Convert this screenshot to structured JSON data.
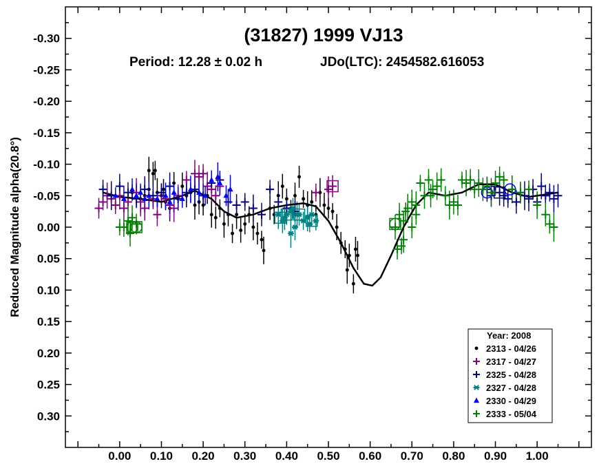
{
  "chart_data": {
    "type": "scatter",
    "title": "(31827) 1999 VJ13",
    "subtitle_period": "Period: 12.28 ± 0.02 h",
    "subtitle_epoch": "JDo(LTC): 2454582.616053",
    "xlabel": "",
    "ylabel": "Reduced Magnitude alpha(20.8°)",
    "xlim": [
      -0.13,
      1.13
    ],
    "ylim": [
      -0.35,
      0.35
    ],
    "y_inverted": true,
    "x_ticks": [
      "0.00",
      "0.10",
      "0.20",
      "0.30",
      "0.40",
      "0.50",
      "0.60",
      "0.70",
      "0.80",
      "0.90",
      "1.00"
    ],
    "y_ticks": [
      "-0.30",
      "-0.25",
      "-0.20",
      "-0.15",
      "-0.10",
      "-0.05",
      "0.00",
      "0.05",
      "0.10",
      "0.15",
      "0.20",
      "0.25",
      "0.30"
    ],
    "legend": {
      "title": "Year: 2008",
      "placement": "bottom-right"
    },
    "fit_curve": [
      [
        -0.04,
        -0.055
      ],
      [
        0.0,
        -0.048
      ],
      [
        0.05,
        -0.045
      ],
      [
        0.1,
        -0.04
      ],
      [
        0.15,
        -0.05
      ],
      [
        0.18,
        -0.058
      ],
      [
        0.22,
        -0.045
      ],
      [
        0.25,
        -0.025
      ],
      [
        0.28,
        -0.015
      ],
      [
        0.32,
        -0.02
      ],
      [
        0.36,
        -0.03
      ],
      [
        0.4,
        -0.035
      ],
      [
        0.44,
        -0.038
      ],
      [
        0.47,
        -0.033
      ],
      [
        0.5,
        -0.01
      ],
      [
        0.53,
        0.025
      ],
      [
        0.56,
        0.065
      ],
      [
        0.585,
        0.09
      ],
      [
        0.605,
        0.093
      ],
      [
        0.625,
        0.08
      ],
      [
        0.65,
        0.045
      ],
      [
        0.68,
        0.0
      ],
      [
        0.71,
        -0.035
      ],
      [
        0.74,
        -0.055
      ],
      [
        0.78,
        -0.05
      ],
      [
        0.82,
        -0.055
      ],
      [
        0.86,
        -0.068
      ],
      [
        0.9,
        -0.068
      ],
      [
        0.94,
        -0.055
      ],
      [
        0.98,
        -0.048
      ],
      [
        1.02,
        -0.052
      ],
      [
        1.05,
        -0.055
      ]
    ],
    "series": [
      {
        "name": "2313 - 04/26",
        "marker": "circle",
        "color": "#000000",
        "points": [
          [
            0.03,
            -0.055
          ],
          [
            0.05,
            -0.045
          ],
          [
            0.06,
            -0.05
          ],
          [
            0.07,
            -0.06
          ],
          [
            0.07,
            -0.09
          ],
          [
            0.08,
            -0.085
          ],
          [
            0.085,
            -0.09
          ],
          [
            0.09,
            -0.055
          ],
          [
            0.1,
            -0.05
          ],
          [
            0.105,
            -0.06
          ],
          [
            0.11,
            -0.04
          ],
          [
            0.12,
            -0.03
          ],
          [
            0.13,
            -0.07
          ],
          [
            0.14,
            -0.045
          ],
          [
            0.15,
            -0.065
          ],
          [
            0.16,
            -0.05
          ],
          [
            0.17,
            -0.055
          ],
          [
            0.18,
            -0.035
          ],
          [
            0.19,
            -0.04
          ],
          [
            0.2,
            -0.035
          ],
          [
            0.21,
            -0.05
          ],
          [
            0.22,
            -0.02
          ],
          [
            0.23,
            -0.015
          ],
          [
            0.24,
            -0.03
          ],
          [
            0.25,
            -0.005
          ],
          [
            0.26,
            -0.02
          ],
          [
            0.27,
            0.01
          ],
          [
            0.28,
            -0.02
          ],
          [
            0.29,
            0.005
          ],
          [
            0.3,
            -0.005
          ],
          [
            0.31,
            -0.02
          ],
          [
            0.32,
            0.0
          ],
          [
            0.33,
            0.01
          ],
          [
            0.34,
            0.02
          ],
          [
            0.345,
            0.037
          ],
          [
            0.36,
            -0.03
          ],
          [
            0.37,
            -0.02
          ],
          [
            0.38,
            -0.05
          ],
          [
            0.39,
            -0.065
          ],
          [
            0.4,
            -0.045
          ],
          [
            0.41,
            -0.03
          ],
          [
            0.42,
            -0.05
          ],
          [
            0.43,
            -0.08
          ],
          [
            0.44,
            -0.045
          ],
          [
            0.45,
            -0.035
          ],
          [
            0.46,
            -0.04
          ],
          [
            0.47,
            -0.02
          ],
          [
            0.48,
            -0.055
          ],
          [
            0.49,
            -0.035
          ],
          [
            0.5,
            -0.03
          ],
          [
            0.51,
            -0.025
          ],
          [
            0.52,
            0.0
          ],
          [
            0.53,
            0.025
          ],
          [
            0.54,
            0.035
          ],
          [
            0.545,
            0.068
          ],
          [
            0.55,
            0.045
          ],
          [
            0.56,
            0.09
          ],
          [
            0.57,
            0.045
          ],
          [
            0.565,
            0.035
          ]
        ]
      },
      {
        "name": "2317 - 04/27",
        "marker": "plus",
        "color": "#800080",
        "points": [
          [
            -0.05,
            -0.03
          ],
          [
            -0.04,
            -0.04
          ],
          [
            -0.03,
            -0.05
          ],
          [
            -0.02,
            -0.045
          ],
          [
            -0.01,
            -0.035
          ],
          [
            0.0,
            -0.05
          ],
          [
            0.01,
            -0.03
          ],
          [
            0.02,
            -0.04
          ],
          [
            0.04,
            -0.055
          ],
          [
            0.06,
            -0.03
          ],
          [
            0.08,
            -0.045
          ],
          [
            0.1,
            -0.05
          ],
          [
            0.12,
            -0.035
          ],
          [
            0.14,
            -0.05
          ],
          [
            0.16,
            -0.075
          ],
          [
            0.18,
            -0.085
          ],
          [
            0.19,
            -0.08
          ],
          [
            0.2,
            -0.085
          ],
          [
            0.21,
            -0.065
          ],
          [
            0.22,
            -0.06
          ],
          [
            0.23,
            -0.05
          ],
          [
            0.24,
            -0.065
          ],
          [
            0.5,
            -0.06
          ],
          [
            0.51,
            -0.065
          ],
          [
            0.47,
            -0.055
          ],
          [
            0.13,
            -0.03
          ],
          [
            0.09,
            -0.02
          ],
          [
            0.11,
            -0.045
          ],
          [
            0.05,
            -0.04
          ],
          [
            0.07,
            -0.05
          ]
        ],
        "open_markers": [
          [
            0.51,
            -0.065
          ]
        ]
      },
      {
        "name": "2325 - 04/28",
        "marker": "plus",
        "color": "#000080",
        "points": [
          [
            0.88,
            -0.06
          ],
          [
            0.89,
            -0.05
          ],
          [
            0.9,
            -0.065
          ],
          [
            0.91,
            -0.055
          ],
          [
            0.92,
            -0.05
          ],
          [
            0.93,
            -0.045
          ],
          [
            0.94,
            -0.06
          ],
          [
            0.95,
            -0.04
          ],
          [
            0.96,
            -0.055
          ],
          [
            0.97,
            -0.05
          ],
          [
            0.98,
            -0.045
          ],
          [
            0.99,
            -0.06
          ],
          [
            1.0,
            -0.04
          ],
          [
            1.01,
            -0.065
          ],
          [
            1.02,
            -0.05
          ],
          [
            1.03,
            -0.055
          ],
          [
            1.04,
            -0.045
          ],
          [
            1.05,
            -0.05
          ],
          [
            -0.04,
            -0.06
          ],
          [
            -0.02,
            -0.05
          ],
          [
            0.0,
            -0.065
          ],
          [
            0.02,
            -0.055
          ],
          [
            0.04,
            -0.045
          ],
          [
            0.06,
            -0.06
          ],
          [
            0.08,
            -0.05
          ],
          [
            0.1,
            -0.055
          ],
          [
            0.12,
            -0.065
          ],
          [
            0.14,
            -0.045
          ],
          [
            0.16,
            -0.055
          ],
          [
            0.18,
            -0.06
          ],
          [
            0.2,
            -0.05
          ],
          [
            0.22,
            -0.07
          ],
          [
            0.24,
            -0.075
          ],
          [
            0.26,
            -0.04
          ],
          [
            0.28,
            -0.035
          ],
          [
            0.3,
            -0.04
          ],
          [
            0.32,
            -0.03
          ],
          [
            0.34,
            -0.02
          ],
          [
            0.36,
            -0.06
          ],
          [
            0.38,
            -0.04
          ],
          [
            0.4,
            -0.03
          ],
          [
            0.42,
            -0.025
          ]
        ],
        "open_markers": [
          [
            0.91,
            -0.055
          ]
        ]
      },
      {
        "name": "2327 - 04/28",
        "marker": "asterisk",
        "color": "#008080",
        "points": [
          [
            0.38,
            -0.02
          ],
          [
            0.39,
            -0.01
          ],
          [
            0.4,
            -0.02
          ],
          [
            0.41,
            -0.025
          ],
          [
            0.42,
            0.0
          ],
          [
            0.43,
            -0.02
          ],
          [
            0.44,
            -0.01
          ],
          [
            0.45,
            -0.015
          ],
          [
            0.46,
            -0.02
          ],
          [
            0.47,
            -0.01
          ],
          [
            0.41,
            0.01
          ],
          [
            0.395,
            -0.015
          ],
          [
            0.415,
            -0.03
          ],
          [
            0.455,
            -0.005
          ],
          [
            0.425,
            -0.02
          ]
        ],
        "open_markers": [
          [
            0.4,
            -0.02
          ],
          [
            0.43,
            -0.02
          ],
          [
            0.46,
            -0.01
          ],
          [
            0.385,
            -0.015
          ]
        ]
      },
      {
        "name": "2330 - 04/29",
        "marker": "triangle",
        "color": "#0000ff",
        "points": [
          [
            0.22,
            -0.075
          ],
          [
            0.235,
            -0.08
          ],
          [
            0.24,
            -0.07
          ],
          [
            0.255,
            -0.05
          ],
          [
            0.09,
            -0.045
          ],
          [
            0.11,
            -0.05
          ],
          [
            0.13,
            -0.055
          ],
          [
            0.15,
            -0.045
          ],
          [
            0.17,
            -0.06
          ],
          [
            0.19,
            -0.055
          ],
          [
            0.205,
            -0.05
          ],
          [
            0.265,
            -0.06
          ],
          [
            0.04,
            -0.05
          ],
          [
            0.06,
            -0.045
          ],
          [
            -0.01,
            -0.05
          ],
          [
            0.01,
            -0.045
          ],
          [
            0.03,
            -0.06
          ],
          [
            0.05,
            -0.055
          ],
          [
            0.07,
            -0.05
          ],
          [
            0.12,
            -0.04
          ]
        ],
        "open_markers": [
          [
            0.88,
            -0.055
          ],
          [
            0.935,
            -0.06
          ]
        ]
      },
      {
        "name": "2333 - 05/04",
        "marker": "plus",
        "color": "#008000",
        "points": [
          [
            0.67,
            -0.02
          ],
          [
            0.68,
            -0.01
          ],
          [
            0.69,
            -0.03
          ],
          [
            0.7,
            -0.04
          ],
          [
            0.71,
            -0.02
          ],
          [
            0.72,
            -0.07
          ],
          [
            0.73,
            -0.05
          ],
          [
            0.74,
            -0.075
          ],
          [
            0.75,
            -0.06
          ],
          [
            0.76,
            -0.065
          ],
          [
            0.77,
            -0.075
          ],
          [
            0.78,
            -0.05
          ],
          [
            0.79,
            -0.035
          ],
          [
            0.8,
            -0.04
          ],
          [
            0.81,
            -0.035
          ],
          [
            0.82,
            -0.075
          ],
          [
            0.83,
            -0.07
          ],
          [
            0.84,
            -0.075
          ],
          [
            0.85,
            -0.06
          ],
          [
            0.86,
            -0.07
          ],
          [
            0.87,
            -0.06
          ],
          [
            0.88,
            -0.065
          ],
          [
            0.89,
            -0.055
          ],
          [
            0.9,
            -0.07
          ],
          [
            0.91,
            -0.08
          ],
          [
            0.92,
            -0.075
          ],
          [
            0.94,
            -0.06
          ],
          [
            0.96,
            -0.055
          ],
          [
            0.98,
            -0.06
          ],
          [
            1.0,
            -0.035
          ],
          [
            1.02,
            -0.02
          ],
          [
            1.03,
            -0.005
          ],
          [
            1.04,
            0.0
          ],
          [
            0.66,
            0.0
          ],
          [
            0.665,
            0.035
          ],
          [
            0.675,
            0.03
          ],
          [
            0.68,
            0.02
          ],
          [
            0.7,
            0.0
          ],
          [
            0.685,
            -0.025
          ],
          [
            0.71,
            -0.035
          ],
          [
            0.745,
            -0.05
          ],
          [
            0.01,
            0.0
          ],
          [
            0.02,
            -0.01
          ],
          [
            0.03,
            -0.015
          ],
          [
            0.04,
            -0.005
          ],
          [
            0.0,
            0.0
          ],
          [
            0.025,
            0.01
          ]
        ],
        "open_markers": [
          [
            0.66,
            -0.005
          ],
          [
            0.03,
            0.0
          ],
          [
            0.04,
            0.0
          ]
        ]
      }
    ]
  }
}
